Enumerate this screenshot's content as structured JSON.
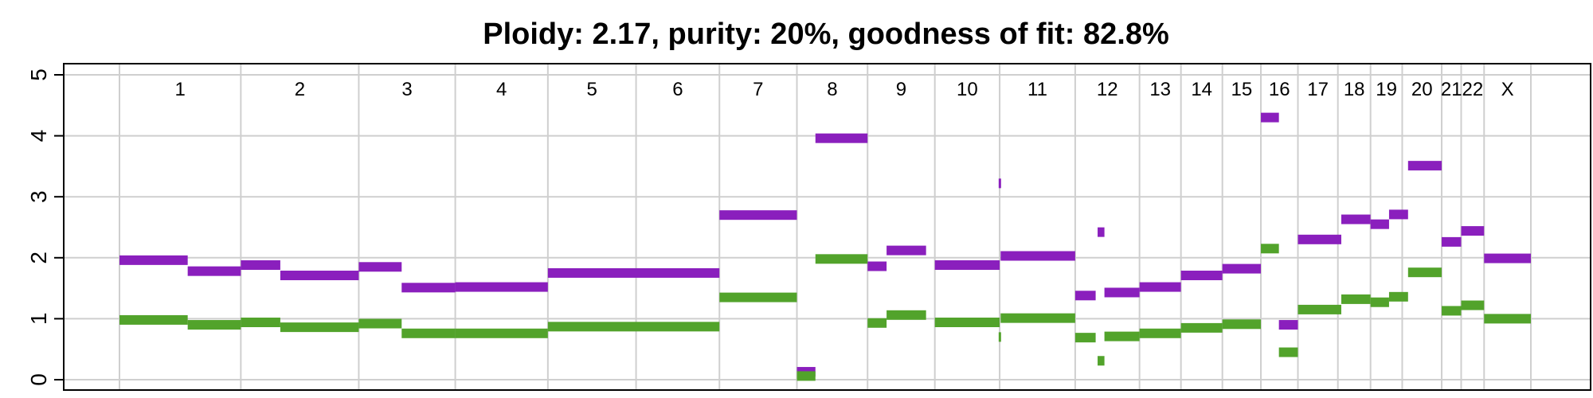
{
  "chart_data": {
    "type": "segment",
    "title": "Ploidy: 2.17, purity: 20%, goodness of fit: 82.8%",
    "xlabel": "",
    "ylabel": "",
    "ylim": [
      -0.15,
      5.25
    ],
    "yticks": [
      0,
      1,
      2,
      3,
      4,
      5
    ],
    "ytick_labels": [
      "0",
      "1",
      "2",
      "3",
      "4",
      "5"
    ],
    "grid": true,
    "colors": {
      "total_copy_number": "#8a1fbd",
      "minor_copy_number": "#52a32b",
      "grid": "#cfcfcf",
      "axis": "#000000"
    },
    "chromosomes": [
      {
        "name": "1",
        "start": 0,
        "end": 249
      },
      {
        "name": "2",
        "start": 249,
        "end": 491
      },
      {
        "name": "3",
        "start": 491,
        "end": 689
      },
      {
        "name": "4",
        "start": 689,
        "end": 879
      },
      {
        "name": "5",
        "start": 879,
        "end": 1060
      },
      {
        "name": "6",
        "start": 1060,
        "end": 1231
      },
      {
        "name": "7",
        "start": 1231,
        "end": 1390
      },
      {
        "name": "8",
        "start": 1390,
        "end": 1535
      },
      {
        "name": "9",
        "start": 1535,
        "end": 1673
      },
      {
        "name": "10",
        "start": 1673,
        "end": 1806
      },
      {
        "name": "11",
        "start": 1806,
        "end": 1961
      },
      {
        "name": "12",
        "start": 1961,
        "end": 2093
      },
      {
        "name": "13",
        "start": 2093,
        "end": 2178
      },
      {
        "name": "14",
        "start": 2178,
        "end": 2263
      },
      {
        "name": "15",
        "start": 2263,
        "end": 2342
      },
      {
        "name": "16",
        "start": 2342,
        "end": 2418
      },
      {
        "name": "17",
        "start": 2418,
        "end": 2500
      },
      {
        "name": "18",
        "start": 2500,
        "end": 2567
      },
      {
        "name": "19",
        "start": 2567,
        "end": 2632
      },
      {
        "name": "20",
        "start": 2632,
        "end": 2713
      },
      {
        "name": "21",
        "start": 2713,
        "end": 2753
      },
      {
        "name": "22",
        "start": 2753,
        "end": 2800
      },
      {
        "name": "X",
        "start": 2800,
        "end": 2896
      }
    ],
    "series": [
      {
        "key": "total",
        "segments": [
          {
            "start": 0,
            "end": 140,
            "value": 1.96
          },
          {
            "start": 140,
            "end": 249,
            "value": 1.78
          },
          {
            "start": 249,
            "end": 330,
            "value": 1.88
          },
          {
            "start": 330,
            "end": 491,
            "value": 1.71
          },
          {
            "start": 491,
            "end": 579,
            "value": 1.85
          },
          {
            "start": 579,
            "end": 689,
            "value": 1.51
          },
          {
            "start": 689,
            "end": 879,
            "value": 1.52
          },
          {
            "start": 879,
            "end": 1231,
            "value": 1.75
          },
          {
            "start": 1231,
            "end": 1390,
            "value": 2.7
          },
          {
            "start": 1390,
            "end": 1428,
            "value": 0.13
          },
          {
            "start": 1428,
            "end": 1535,
            "value": 3.96
          },
          {
            "start": 1535,
            "end": 1574,
            "value": 1.86
          },
          {
            "start": 1574,
            "end": 1655,
            "value": 2.12
          },
          {
            "start": 1673,
            "end": 1806,
            "value": 1.88
          },
          {
            "start": 1804,
            "end": 1808,
            "value": 3.22
          },
          {
            "start": 1808,
            "end": 1961,
            "value": 2.03
          },
          {
            "start": 1961,
            "end": 2003,
            "value": 1.38
          },
          {
            "start": 2007,
            "end": 2021,
            "value": 2.42
          },
          {
            "start": 2021,
            "end": 2093,
            "value": 1.43
          },
          {
            "start": 2093,
            "end": 2178,
            "value": 1.52
          },
          {
            "start": 2178,
            "end": 2263,
            "value": 1.71
          },
          {
            "start": 2263,
            "end": 2342,
            "value": 1.82
          },
          {
            "start": 2342,
            "end": 2379,
            "value": 4.3
          },
          {
            "start": 2379,
            "end": 2418,
            "value": 0.9
          },
          {
            "start": 2418,
            "end": 2507,
            "value": 2.3
          },
          {
            "start": 2507,
            "end": 2567,
            "value": 2.63
          },
          {
            "start": 2567,
            "end": 2605,
            "value": 2.55
          },
          {
            "start": 2605,
            "end": 2644,
            "value": 2.71
          },
          {
            "start": 2644,
            "end": 2713,
            "value": 3.51
          },
          {
            "start": 2713,
            "end": 2753,
            "value": 2.26
          },
          {
            "start": 2753,
            "end": 2800,
            "value": 2.44
          },
          {
            "start": 2800,
            "end": 2896,
            "value": 1.99
          }
        ]
      },
      {
        "key": "minor",
        "segments": [
          {
            "start": 0,
            "end": 140,
            "value": 0.98
          },
          {
            "start": 140,
            "end": 249,
            "value": 0.9
          },
          {
            "start": 249,
            "end": 330,
            "value": 0.94
          },
          {
            "start": 330,
            "end": 491,
            "value": 0.86
          },
          {
            "start": 491,
            "end": 579,
            "value": 0.92
          },
          {
            "start": 579,
            "end": 689,
            "value": 0.76
          },
          {
            "start": 689,
            "end": 879,
            "value": 0.76
          },
          {
            "start": 879,
            "end": 1231,
            "value": 0.87
          },
          {
            "start": 1231,
            "end": 1390,
            "value": 1.35
          },
          {
            "start": 1390,
            "end": 1428,
            "value": 0.06
          },
          {
            "start": 1428,
            "end": 1535,
            "value": 1.98
          },
          {
            "start": 1535,
            "end": 1574,
            "value": 0.93
          },
          {
            "start": 1574,
            "end": 1655,
            "value": 1.06
          },
          {
            "start": 1673,
            "end": 1806,
            "value": 0.94
          },
          {
            "start": 1804,
            "end": 1808,
            "value": 0.7
          },
          {
            "start": 1808,
            "end": 1961,
            "value": 1.01
          },
          {
            "start": 1961,
            "end": 2003,
            "value": 0.69
          },
          {
            "start": 2007,
            "end": 2021,
            "value": 0.31
          },
          {
            "start": 2021,
            "end": 2093,
            "value": 0.71
          },
          {
            "start": 2093,
            "end": 2178,
            "value": 0.76
          },
          {
            "start": 2178,
            "end": 2263,
            "value": 0.85
          },
          {
            "start": 2263,
            "end": 2342,
            "value": 0.91
          },
          {
            "start": 2342,
            "end": 2379,
            "value": 2.15
          },
          {
            "start": 2379,
            "end": 2418,
            "value": 0.45
          },
          {
            "start": 2418,
            "end": 2507,
            "value": 1.15
          },
          {
            "start": 2507,
            "end": 2567,
            "value": 1.32
          },
          {
            "start": 2567,
            "end": 2605,
            "value": 1.27
          },
          {
            "start": 2605,
            "end": 2644,
            "value": 1.36
          },
          {
            "start": 2644,
            "end": 2713,
            "value": 1.76
          },
          {
            "start": 2713,
            "end": 2753,
            "value": 1.13
          },
          {
            "start": 2753,
            "end": 2800,
            "value": 1.22
          },
          {
            "start": 2800,
            "end": 2896,
            "value": 1.0
          }
        ]
      }
    ]
  }
}
